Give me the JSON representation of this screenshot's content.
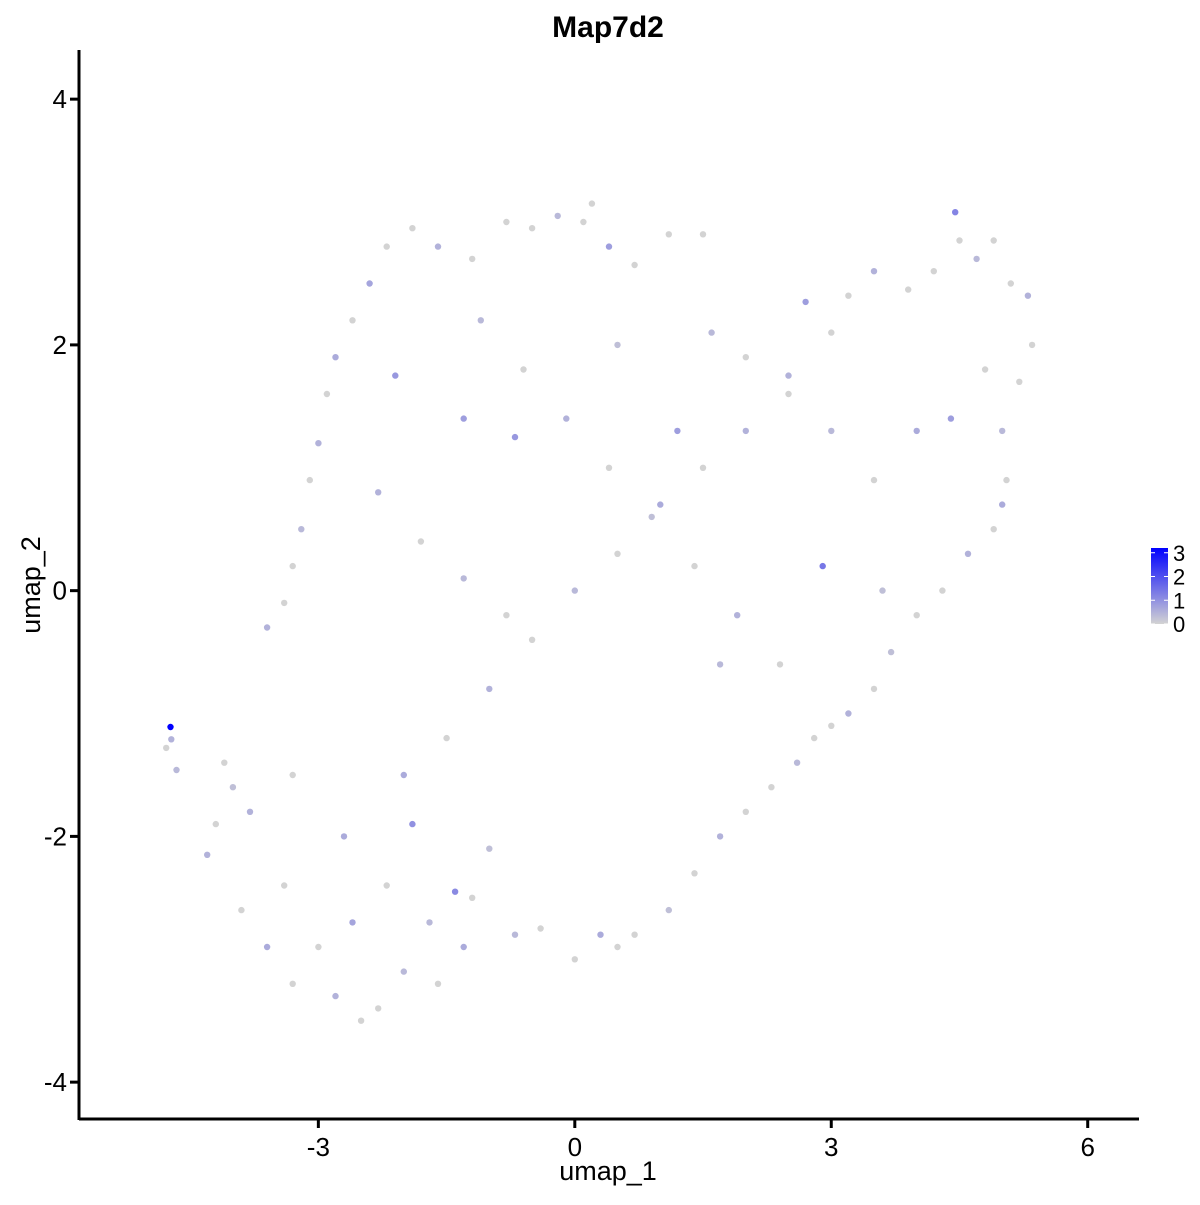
{
  "chart_data": {
    "type": "scatter",
    "title": "Map7d2",
    "xlabel": "umap_1",
    "ylabel": "umap_2",
    "xlim": [
      -5.8,
      6.6
    ],
    "ylim": [
      -4.3,
      4.4
    ],
    "x_ticks": [
      -3,
      0,
      3,
      6
    ],
    "y_ticks": [
      -4,
      -2,
      0,
      2,
      4
    ],
    "x_tick_labels": [
      "-3",
      "0",
      "3",
      "6"
    ],
    "y_tick_labels": [
      "-4",
      "-2",
      "0",
      "2",
      "4"
    ],
    "grid": false,
    "legend": {
      "type": "colorbar",
      "placement": "right",
      "title": "",
      "min": 0,
      "max": 3.2,
      "ticks": [
        0,
        1,
        2,
        3
      ],
      "tick_labels": [
        "0",
        "1",
        "2",
        "3"
      ],
      "low_color": "#d3d3d3",
      "high_color": "#0000ff"
    },
    "series": [
      {
        "points": [
          [
            -4.73,
            -1.11,
            3.2
          ],
          [
            -4.72,
            -1.21,
            0.5
          ],
          [
            -4.78,
            -1.28,
            0
          ],
          [
            -4.66,
            -1.46,
            0.4
          ],
          [
            -4.1,
            -1.4,
            0
          ],
          [
            -4.0,
            -1.6,
            0.3
          ],
          [
            -4.2,
            -1.9,
            0
          ],
          [
            -4.3,
            -2.15,
            0.5
          ],
          [
            -3.9,
            -2.6,
            0
          ],
          [
            -3.6,
            -2.9,
            0.6
          ],
          [
            -3.3,
            -3.2,
            0
          ],
          [
            -3.0,
            -2.9,
            0
          ],
          [
            -2.8,
            -3.3,
            0.5
          ],
          [
            -2.5,
            -3.5,
            0
          ],
          [
            -2.3,
            -3.4,
            0
          ],
          [
            -2.0,
            -3.1,
            0.4
          ],
          [
            -1.6,
            -3.2,
            0
          ],
          [
            -1.3,
            -2.9,
            0.6
          ],
          [
            -1.2,
            -2.5,
            0
          ],
          [
            -1.0,
            -2.1,
            0.3
          ],
          [
            -3.6,
            -0.3,
            0.5
          ],
          [
            -3.4,
            -0.1,
            0
          ],
          [
            -3.3,
            0.2,
            0
          ],
          [
            -3.2,
            0.5,
            0.4
          ],
          [
            -3.1,
            0.9,
            0
          ],
          [
            -3.0,
            1.2,
            0.5
          ],
          [
            -2.9,
            1.6,
            0
          ],
          [
            -2.8,
            1.9,
            0.6
          ],
          [
            -2.6,
            2.2,
            0
          ],
          [
            -2.4,
            2.5,
            0.7
          ],
          [
            -2.2,
            2.8,
            0
          ],
          [
            -1.9,
            2.95,
            0
          ],
          [
            -1.6,
            2.8,
            0.5
          ],
          [
            -1.2,
            2.7,
            0
          ],
          [
            -0.8,
            3.0,
            0
          ],
          [
            -0.5,
            2.95,
            0
          ],
          [
            -0.2,
            3.05,
            0.4
          ],
          [
            0.1,
            3.0,
            0
          ],
          [
            0.2,
            3.15,
            0
          ],
          [
            0.4,
            2.8,
            0.8
          ],
          [
            0.7,
            2.65,
            0
          ],
          [
            1.1,
            2.9,
            0
          ],
          [
            1.5,
            2.9,
            0
          ],
          [
            1.6,
            2.1,
            0.4
          ],
          [
            2.0,
            1.9,
            0
          ],
          [
            2.5,
            1.75,
            0.5
          ],
          [
            2.7,
            2.35,
            0.8
          ],
          [
            3.0,
            2.1,
            0
          ],
          [
            3.2,
            2.4,
            0
          ],
          [
            3.5,
            2.6,
            0.5
          ],
          [
            3.9,
            2.45,
            0
          ],
          [
            4.2,
            2.6,
            0
          ],
          [
            4.45,
            3.08,
            1.2
          ],
          [
            4.5,
            2.85,
            0
          ],
          [
            4.7,
            2.7,
            0.4
          ],
          [
            4.9,
            2.85,
            0
          ],
          [
            5.1,
            2.5,
            0
          ],
          [
            5.3,
            2.4,
            0.5
          ],
          [
            5.35,
            2.0,
            0
          ],
          [
            5.2,
            1.7,
            0
          ],
          [
            5.0,
            1.3,
            0.4
          ],
          [
            5.05,
            0.9,
            0
          ],
          [
            5.0,
            0.7,
            0.6
          ],
          [
            4.9,
            0.5,
            0
          ],
          [
            4.6,
            0.3,
            0.5
          ],
          [
            4.3,
            0.0,
            0
          ],
          [
            4.0,
            -0.2,
            0
          ],
          [
            3.7,
            -0.5,
            0.3
          ],
          [
            3.5,
            -0.8,
            0
          ],
          [
            3.2,
            -1.0,
            0.5
          ],
          [
            3.0,
            -1.1,
            0
          ],
          [
            2.8,
            -1.2,
            0
          ],
          [
            2.6,
            -1.4,
            0.4
          ],
          [
            2.3,
            -1.6,
            0
          ],
          [
            2.0,
            -1.8,
            0
          ],
          [
            1.7,
            -2.0,
            0.5
          ],
          [
            1.4,
            -2.3,
            0
          ],
          [
            1.1,
            -2.6,
            0.3
          ],
          [
            0.7,
            -2.8,
            0
          ],
          [
            0.5,
            -2.9,
            0
          ],
          [
            0.3,
            -2.8,
            0.6
          ],
          [
            0.0,
            -3.0,
            0
          ],
          [
            -0.4,
            -2.75,
            0
          ],
          [
            -0.7,
            -2.8,
            0.4
          ],
          [
            -2.0,
            -1.5,
            0.6
          ],
          [
            -1.5,
            -1.2,
            0
          ],
          [
            -1.0,
            -0.8,
            0.5
          ],
          [
            -0.5,
            -0.4,
            0
          ],
          [
            0.0,
            0.0,
            0.4
          ],
          [
            0.5,
            0.3,
            0
          ],
          [
            1.0,
            0.7,
            0.6
          ],
          [
            1.5,
            1.0,
            0
          ],
          [
            2.0,
            1.3,
            0.5
          ],
          [
            2.5,
            1.6,
            0
          ],
          [
            3.0,
            1.3,
            0.4
          ],
          [
            3.5,
            0.9,
            0
          ],
          [
            4.0,
            1.3,
            0.6
          ],
          [
            4.4,
            1.4,
            0.8
          ],
          [
            4.8,
            1.8,
            0
          ],
          [
            2.9,
            0.2,
            1.4
          ],
          [
            -2.3,
            0.8,
            0.5
          ],
          [
            -1.8,
            0.4,
            0
          ],
          [
            -1.3,
            0.1,
            0.4
          ],
          [
            -0.8,
            -0.2,
            0
          ],
          [
            -1.1,
            2.2,
            0.4
          ],
          [
            -0.6,
            1.8,
            0
          ],
          [
            -0.1,
            1.4,
            0.5
          ],
          [
            0.4,
            1.0,
            0
          ],
          [
            0.9,
            0.6,
            0.3
          ],
          [
            1.4,
            0.2,
            0
          ],
          [
            1.9,
            -0.2,
            0.5
          ],
          [
            2.4,
            -0.6,
            0
          ],
          [
            -2.7,
            -2.0,
            0.6
          ],
          [
            -2.2,
            -2.4,
            0
          ],
          [
            -1.7,
            -2.7,
            0.4
          ],
          [
            -3.3,
            -1.5,
            0
          ],
          [
            -3.8,
            -1.8,
            0.5
          ],
          [
            -3.4,
            -2.4,
            0
          ],
          [
            -2.6,
            -2.7,
            0.7
          ],
          [
            -1.4,
            -2.45,
            1.1
          ],
          [
            -1.9,
            -1.9,
            1.0
          ],
          [
            -2.1,
            1.75,
            0.9
          ],
          [
            -1.3,
            1.4,
            0.8
          ],
          [
            -0.7,
            1.25,
            0.9
          ],
          [
            1.2,
            1.3,
            0.8
          ],
          [
            0.5,
            2.0,
            0.3
          ],
          [
            1.7,
            -0.6,
            0.4
          ],
          [
            3.6,
            0.0,
            0.3
          ]
        ]
      }
    ]
  }
}
